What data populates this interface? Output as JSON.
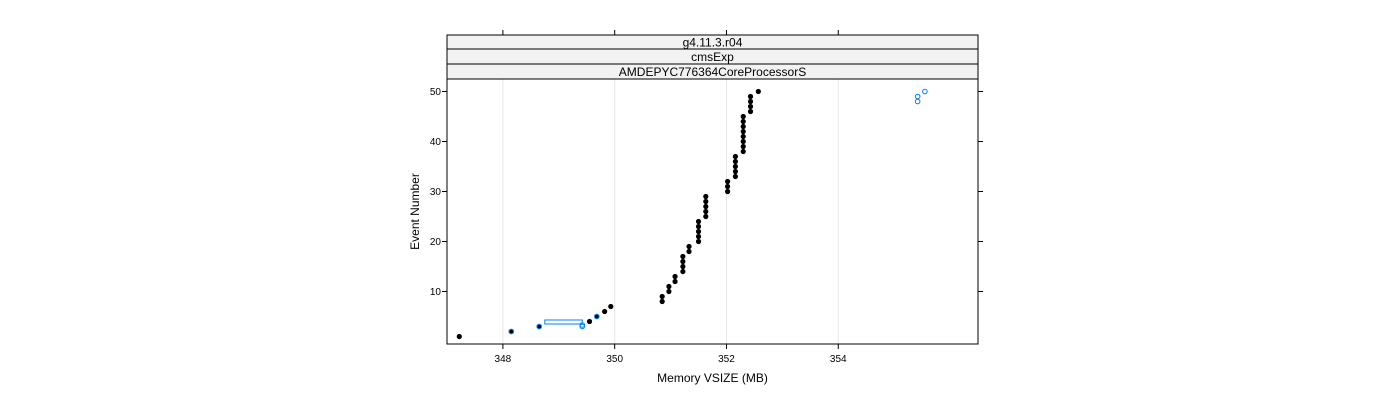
{
  "chart_data": {
    "type": "scatter",
    "xlabel": "Memory VSIZE (MB)",
    "ylabel": "Event Number",
    "xlim": [
      347.0,
      356.5
    ],
    "ylim": [
      -0.5,
      52.5
    ],
    "x_ticks": [
      348,
      350,
      352,
      354
    ],
    "x_tick_labels": [
      "348",
      "350",
      "352",
      "354"
    ],
    "y_ticks": [
      10,
      20,
      30,
      40,
      50
    ],
    "y_tick_labels": [
      "10",
      "20",
      "30",
      "40",
      "50"
    ],
    "strips": [
      "g4.11.3.r04",
      "cmsExp",
      "AMDEPYC776364CoreProcessorS"
    ],
    "grid": true,
    "colors": {
      "primary": "#000000",
      "secondary": "#0080ff",
      "strip": "#f2f2f2",
      "grid": "#e6e6e6",
      "frame": "#000000"
    },
    "series": [
      {
        "name": "primary",
        "style": "filled",
        "points": [
          [
            347.22,
            1
          ],
          [
            348.15,
            2
          ],
          [
            348.65,
            3
          ],
          [
            349.55,
            4
          ],
          [
            349.68,
            5
          ],
          [
            349.82,
            6
          ],
          [
            349.93,
            7
          ],
          [
            350.85,
            8
          ],
          [
            350.85,
            9
          ],
          [
            350.97,
            10
          ],
          [
            350.97,
            11
          ],
          [
            351.08,
            12
          ],
          [
            351.08,
            13
          ],
          [
            351.22,
            14
          ],
          [
            351.22,
            15
          ],
          [
            351.22,
            16
          ],
          [
            351.22,
            17
          ],
          [
            351.33,
            18
          ],
          [
            351.33,
            19
          ],
          [
            351.5,
            20
          ],
          [
            351.5,
            21
          ],
          [
            351.5,
            22
          ],
          [
            351.5,
            23
          ],
          [
            351.5,
            24
          ],
          [
            351.63,
            25
          ],
          [
            351.63,
            26
          ],
          [
            351.63,
            27
          ],
          [
            351.63,
            28
          ],
          [
            351.63,
            29
          ],
          [
            352.02,
            30
          ],
          [
            352.02,
            31
          ],
          [
            352.02,
            32
          ],
          [
            352.16,
            33
          ],
          [
            352.16,
            34
          ],
          [
            352.16,
            35
          ],
          [
            352.16,
            36
          ],
          [
            352.16,
            37
          ],
          [
            352.3,
            38
          ],
          [
            352.3,
            39
          ],
          [
            352.3,
            40
          ],
          [
            352.3,
            41
          ],
          [
            352.3,
            42
          ],
          [
            352.3,
            43
          ],
          [
            352.3,
            44
          ],
          [
            352.3,
            45
          ],
          [
            352.43,
            46
          ],
          [
            352.43,
            47
          ],
          [
            352.43,
            48
          ],
          [
            352.43,
            49
          ],
          [
            352.57,
            50
          ]
        ]
      },
      {
        "name": "secondary",
        "style": "open",
        "points": [
          [
            348.15,
            2
          ],
          [
            348.65,
            3
          ],
          [
            349.42,
            3
          ],
          [
            349.42,
            3.3
          ],
          [
            349.68,
            5
          ],
          [
            355.42,
            48
          ],
          [
            355.42,
            49
          ],
          [
            355.55,
            50
          ]
        ]
      }
    ],
    "range_bar": {
      "x0": 348.75,
      "x1": 349.42,
      "y": 3.9
    }
  }
}
